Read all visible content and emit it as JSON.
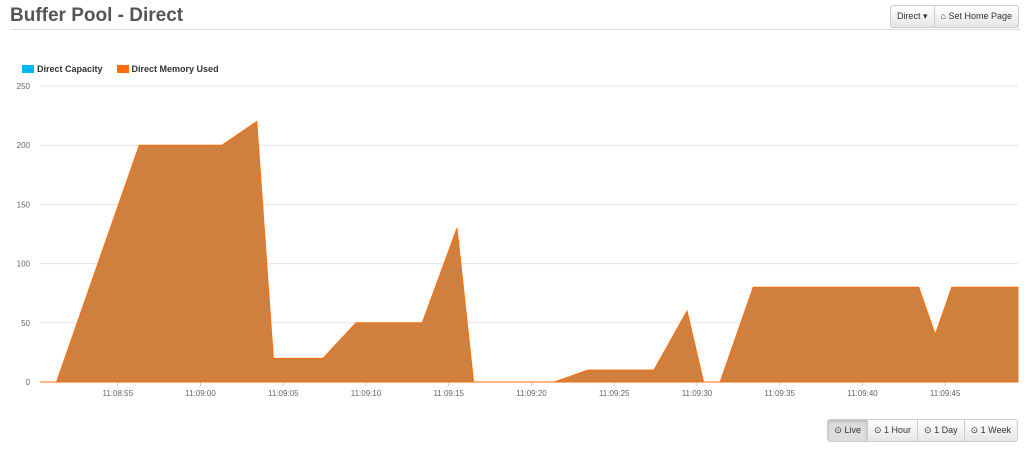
{
  "header": {
    "title": "Buffer Pool - Direct",
    "dropdown_label": "Direct",
    "home_label": "Set Home Page",
    "home_icon": "home-icon"
  },
  "range_buttons": [
    {
      "label": "Live",
      "active": true
    },
    {
      "label": "1 Hour"
    },
    {
      "label": "1 Day"
    },
    {
      "label": "1 Week"
    }
  ],
  "chart_data": {
    "type": "area",
    "legend": [
      {
        "name": "Direct Capacity",
        "color": "#00b7f1"
      },
      {
        "name": "Direct Memory Used",
        "color": "#ff6c0a"
      }
    ],
    "legend_placement": "top-left",
    "ylim": [
      0,
      250
    ],
    "yticks": [
      "0",
      "50",
      "100",
      "150",
      "200",
      "250"
    ],
    "xticks": [
      "11:08:55",
      "11:09:00",
      "11:09:05",
      "11:09:10",
      "11:09:15",
      "11:09:20",
      "11:09:25",
      "11:09:30",
      "11:09:35",
      "11:09:40",
      "11:09:45"
    ],
    "xlim": [
      "11:08:50.3",
      "11:09:49.4"
    ],
    "grid": true,
    "fill_color": "#cf7f3e",
    "series": [
      {
        "name": "Direct Capacity",
        "x": [],
        "y": []
      },
      {
        "name": "Direct Memory Used",
        "x": [
          "11:08:51.3",
          "11:08:56.3",
          "11:09:01.3",
          "11:09:03.4",
          "11:09:04.4",
          "11:09:07.4",
          "11:09:09.4",
          "11:09:13.4",
          "11:09:15.5",
          "11:09:16.5",
          "11:09:21.4",
          "11:09:23.4",
          "11:09:27.4",
          "11:09:29.4",
          "11:09:30.4",
          "11:09:31.4",
          "11:09:33.4",
          "11:09:43.4",
          "11:09:44.4",
          "11:09:45.4",
          "11:09:49.4"
        ],
        "y": [
          0,
          200,
          200,
          220,
          20,
          20,
          50,
          50,
          130,
          0,
          0,
          10,
          10,
          60,
          0,
          0,
          80,
          80,
          40,
          80,
          80
        ]
      }
    ]
  }
}
